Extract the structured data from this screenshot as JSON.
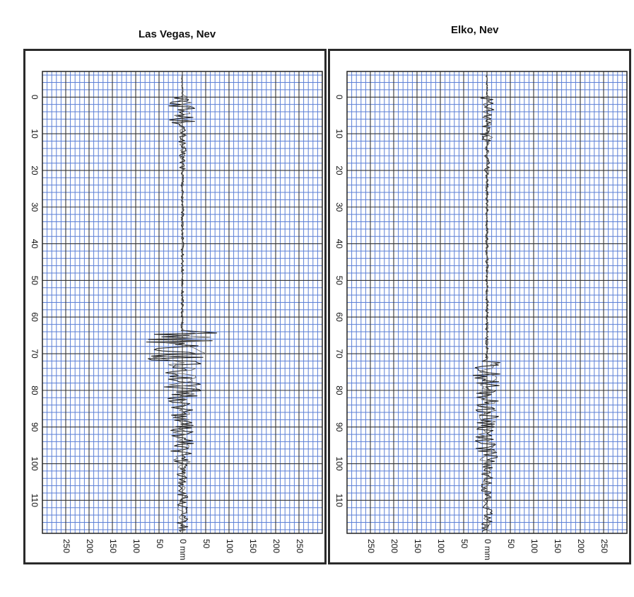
{
  "chart_data": [
    {
      "type": "line",
      "title": "Las Vegas, Nev",
      "orientation": "vertical-trace",
      "ylabel": "",
      "xlabel": "",
      "x_unit": "mm",
      "xlim": [
        -300,
        300
      ],
      "ylim": [
        -7,
        119
      ],
      "x_ticks": [
        "250",
        "200",
        "150",
        "100",
        "50",
        "0 mm",
        "50",
        "100",
        "150",
        "200",
        "250"
      ],
      "y_ticks": [
        "0",
        "10",
        "20",
        "30",
        "40",
        "50",
        "60",
        "70",
        "80",
        "90",
        "100",
        "110"
      ],
      "grid": true,
      "colors": {
        "grid_minor": "#5b7fd6",
        "grid_major": "#333333",
        "background": "#ffffff",
        "trace": "#222222"
      },
      "bursts": [
        {
          "y_start": 0,
          "y_end": 7,
          "amplitude_mm": 30
        },
        {
          "y_start": 7,
          "y_end": 20,
          "amplitude_mm": 8
        },
        {
          "y_start": 20,
          "y_end": 64,
          "amplitude_mm": 3
        },
        {
          "y_start": 64,
          "y_end": 72,
          "amplitude_mm": 80
        },
        {
          "y_start": 72,
          "y_end": 83,
          "amplitude_mm": 40
        },
        {
          "y_start": 83,
          "y_end": 100,
          "amplitude_mm": 25
        },
        {
          "y_start": 100,
          "y_end": 119,
          "amplitude_mm": 12
        }
      ]
    },
    {
      "type": "line",
      "title": "Elko, Nev",
      "orientation": "vertical-trace",
      "ylabel": "",
      "xlabel": "",
      "x_unit": "mm",
      "xlim": [
        -300,
        300
      ],
      "ylim": [
        -7,
        119
      ],
      "x_ticks": [
        "250",
        "200",
        "150",
        "100",
        "50",
        "0 mm",
        "50",
        "100",
        "150",
        "200",
        "250"
      ],
      "y_ticks": [
        "0",
        "10",
        "20",
        "30",
        "40",
        "50",
        "60",
        "70",
        "80",
        "90",
        "100",
        "110"
      ],
      "grid": true,
      "colors": {
        "grid_minor": "#5b7fd6",
        "grid_major": "#333333",
        "background": "#ffffff",
        "trace": "#222222"
      },
      "bursts": [
        {
          "y_start": 0,
          "y_end": 12,
          "amplitude_mm": 15
        },
        {
          "y_start": 12,
          "y_end": 22,
          "amplitude_mm": 6
        },
        {
          "y_start": 22,
          "y_end": 72,
          "amplitude_mm": 3
        },
        {
          "y_start": 72,
          "y_end": 82,
          "amplitude_mm": 30
        },
        {
          "y_start": 82,
          "y_end": 100,
          "amplitude_mm": 25
        },
        {
          "y_start": 100,
          "y_end": 119,
          "amplitude_mm": 12
        }
      ]
    }
  ]
}
